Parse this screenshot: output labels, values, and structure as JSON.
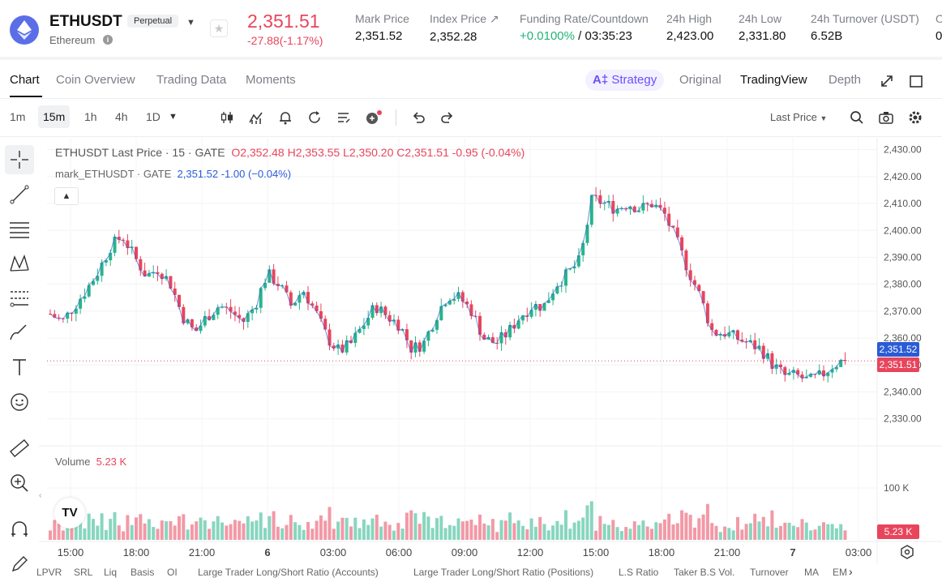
{
  "header": {
    "pair": "ETHUSDT",
    "type_badge": "Perpetual",
    "coin_name": "Ethereum",
    "last_price": "2,351.51",
    "change": "-27.88(-1.17%)",
    "stats": [
      {
        "label": "Mark Price",
        "value": "2,351.52"
      },
      {
        "label": "Index Price ↗",
        "value": "2,352.28"
      },
      {
        "label": "Funding Rate/Countdown",
        "value_green": "+0.0100%",
        "value": " / 03:35:23"
      },
      {
        "label": "24h High",
        "value": "2,423.00"
      },
      {
        "label": "24h Low",
        "value": "2,331.80"
      },
      {
        "label": "24h Turnover (USDT)",
        "value": "6.52B"
      },
      {
        "label": "O",
        "value": "0"
      }
    ]
  },
  "tabs": {
    "left": [
      "Chart",
      "Coin Overview",
      "Trading Data",
      "Moments"
    ],
    "strategy": "Strategy",
    "right": [
      "Original",
      "TradingView",
      "Depth"
    ]
  },
  "toolbar": {
    "intervals": [
      "1m",
      "15m",
      "1h",
      "4h",
      "1D"
    ],
    "price_source": "Last Price"
  },
  "legend": {
    "title": "ETHUSDT Last Price · 15 · GATE",
    "ohlc": "O2,352.48  H2,353.55  L2,350.20  C2,351.51  -0.95 (-0.04%)",
    "mark_name": "mark_ETHUSDT · GATE",
    "mark_values": "2,351.52  -1.00 (−0.04%)"
  },
  "volume_legend": {
    "label": "Volume",
    "value": "5.23 K"
  },
  "price_tags": {
    "mark": "2,351.52",
    "last": "2,351.51",
    "volume": "5.23 K"
  },
  "indicators": [
    "LPVR",
    "SRL",
    "Liq",
    "Basis",
    "OI",
    "Large Trader Long/Short Ratio (Accounts)",
    "Large Trader Long/Short Ratio (Positions)",
    "L.S Ratio",
    "Taker B.S Vol.",
    "Turnover",
    "MA",
    "EM"
  ],
  "colors": {
    "up": "#26b58a",
    "down": "#e8455c",
    "mark_line": "#3f5bd8"
  },
  "chart_data": {
    "type": "candlestick",
    "price_axis": {
      "ticks": [
        2330,
        2340,
        2350,
        2360,
        2370,
        2380,
        2390,
        2400,
        2410,
        2420,
        2430
      ],
      "range": [
        2326,
        2432
      ]
    },
    "x_ticks": [
      "15:00",
      "18:00",
      "21:00",
      "6",
      "03:00",
      "06:00",
      "09:00",
      "12:00",
      "15:00",
      "18:00",
      "21:00",
      "7",
      "03:00"
    ],
    "volume_axis": {
      "ticks": [
        "100 K"
      ]
    },
    "close_path": [
      2369,
      2366,
      2372,
      2378,
      2385,
      2394,
      2398,
      2390,
      2383,
      2386,
      2380,
      2368,
      2362,
      2368,
      2372,
      2370,
      2366,
      2372,
      2384,
      2380,
      2372,
      2378,
      2370,
      2360,
      2355,
      2358,
      2365,
      2372,
      2368,
      2365,
      2356,
      2358,
      2368,
      2376,
      2375,
      2370,
      2360,
      2358,
      2362,
      2368,
      2372,
      2372,
      2380,
      2384,
      2389,
      2412,
      2410,
      2408,
      2410,
      2408,
      2410,
      2406,
      2396,
      2385,
      2375,
      2362,
      2362,
      2360,
      2358,
      2356,
      2350,
      2346,
      2346,
      2344,
      2346,
      2350,
      2352
    ]
  }
}
